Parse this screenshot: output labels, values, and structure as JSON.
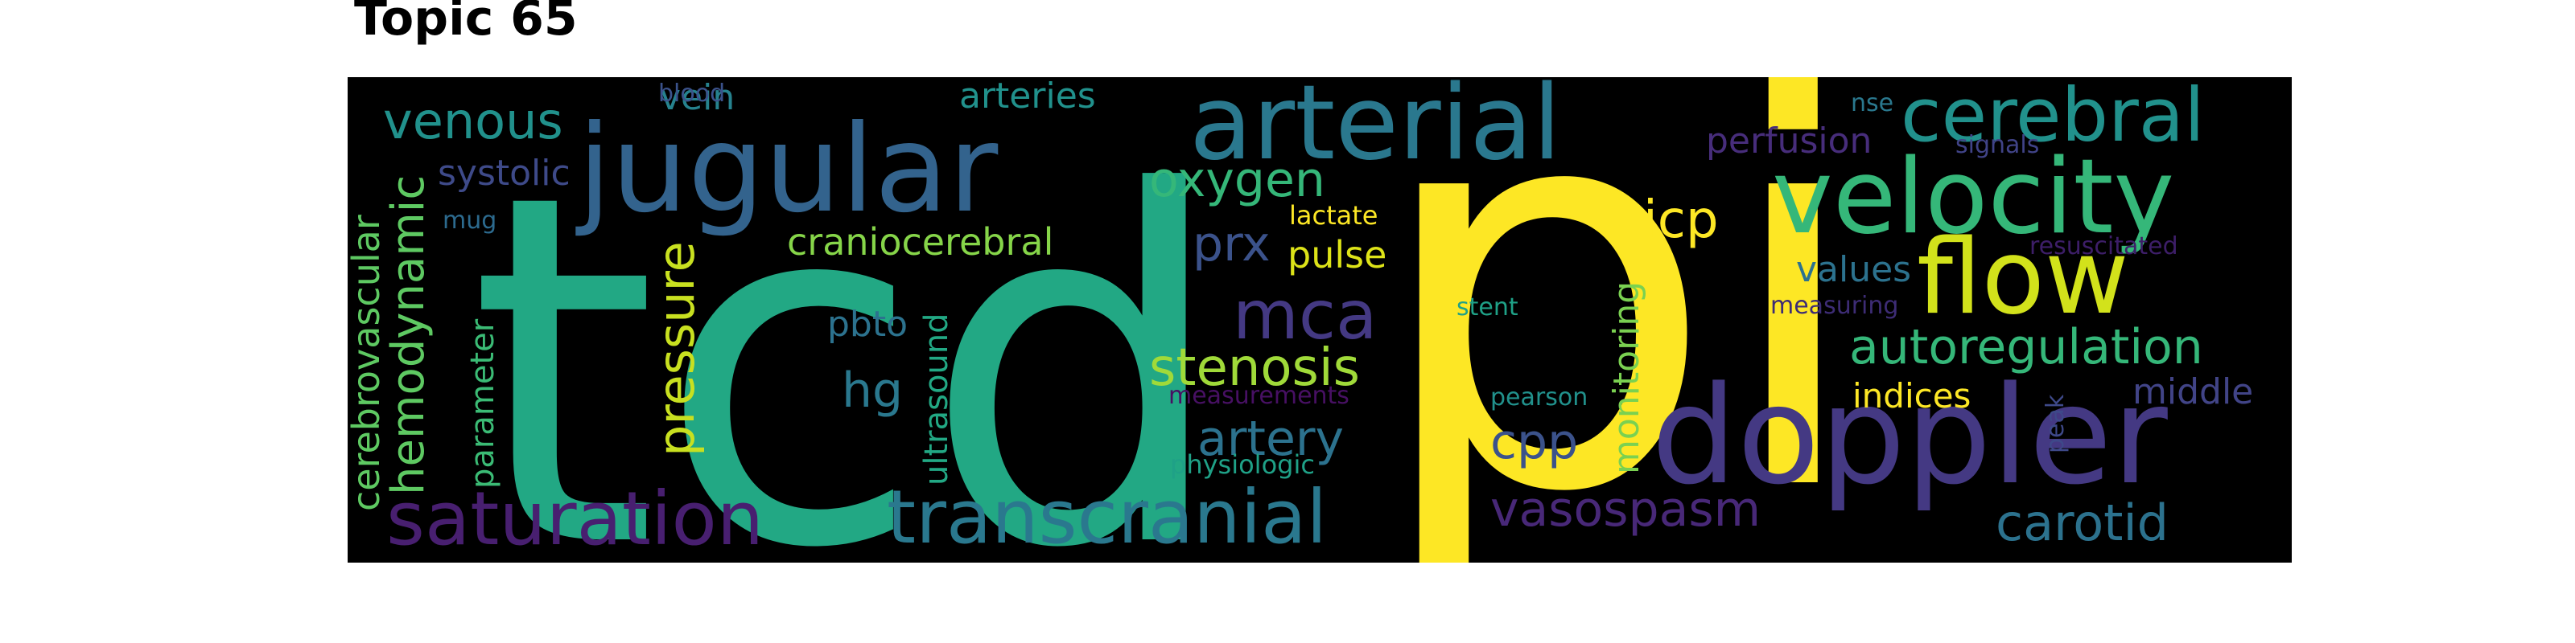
{
  "title": "Topic 65",
  "words": [
    {
      "key": "tcd",
      "text": "tcd",
      "color": "#22a884"
    },
    {
      "key": "pi",
      "text": "pi",
      "color": "#fde725"
    },
    {
      "key": "jugular",
      "text": "jugular",
      "color": "#33638d"
    },
    {
      "key": "doppler",
      "text": "doppler",
      "color": "#443983"
    },
    {
      "key": "arterial",
      "text": "arterial",
      "color": "#2a788e"
    },
    {
      "key": "velocity",
      "text": "velocity",
      "color": "#35b779"
    },
    {
      "key": "flow",
      "text": "flow",
      "color": "#d2e21b"
    },
    {
      "key": "saturation",
      "text": "saturation",
      "color": "#481f70"
    },
    {
      "key": "transcranial",
      "text": "transcranial",
      "color": "#2a788e"
    },
    {
      "key": "cerebral",
      "text": "cerebral",
      "color": "#21918c"
    },
    {
      "key": "mca",
      "text": "mca",
      "color": "#443983"
    },
    {
      "key": "stenosis",
      "text": "stenosis",
      "color": "#a0da39"
    },
    {
      "key": "autoregulation",
      "text": "autoregulation",
      "color": "#35b779"
    },
    {
      "key": "hemodynamic",
      "text": "hemodynamic",
      "color": "#5ec962"
    },
    {
      "key": "pressure",
      "text": "pressure",
      "color": "#c8e020"
    },
    {
      "key": "venous",
      "text": "venous",
      "color": "#21918c"
    },
    {
      "key": "oxygen",
      "text": "oxygen",
      "color": "#35b779"
    },
    {
      "key": "artery",
      "text": "artery",
      "color": "#2c728e"
    },
    {
      "key": "vasospasm",
      "text": "vasospasm",
      "color": "#482878"
    },
    {
      "key": "carotid",
      "text": "carotid",
      "color": "#2c728e"
    },
    {
      "key": "cpp",
      "text": "cpp",
      "color": "#3b528b"
    },
    {
      "key": "icp",
      "text": "icp",
      "color": "#fde725"
    },
    {
      "key": "prx",
      "text": "prx",
      "color": "#3b528b"
    },
    {
      "key": "craniocerebral",
      "text": "craniocerebral",
      "color": "#86d549"
    },
    {
      "key": "cerebrovascular",
      "text": "cerebrovascular",
      "color": "#5ec962"
    },
    {
      "key": "hg",
      "text": "hg",
      "color": "#2a788e"
    },
    {
      "key": "pulse",
      "text": "pulse",
      "color": "#dde318"
    },
    {
      "key": "monitoring",
      "text": "monitoring",
      "color": "#7ad151"
    },
    {
      "key": "values",
      "text": "values",
      "color": "#2c728e"
    },
    {
      "key": "indices",
      "text": "indices",
      "color": "#fde725"
    },
    {
      "key": "middle",
      "text": "middle",
      "color": "#414487"
    },
    {
      "key": "systolic",
      "text": "systolic",
      "color": "#3e4a89"
    },
    {
      "key": "pbto",
      "text": "pbto",
      "color": "#2c728e"
    },
    {
      "key": "ultrasound",
      "text": "ultrasound",
      "color": "#22a884"
    },
    {
      "key": "parameter",
      "text": "parameter",
      "color": "#3bbb75"
    },
    {
      "key": "perfusion",
      "text": "perfusion",
      "color": "#472d7b"
    },
    {
      "key": "arteries",
      "text": "arteries",
      "color": "#21918c"
    },
    {
      "key": "vein",
      "text": "vein",
      "color": "#26828e"
    },
    {
      "key": "lactate",
      "text": "lactate",
      "color": "#fde725"
    },
    {
      "key": "stent",
      "text": "stent",
      "color": "#1fa187"
    },
    {
      "key": "nse",
      "text": "nse",
      "color": "#2a788e"
    },
    {
      "key": "signals",
      "text": "signals",
      "color": "#404387"
    },
    {
      "key": "resuscitated",
      "text": "resuscitated",
      "color": "#3d1e68"
    },
    {
      "key": "measuring",
      "text": "measuring",
      "color": "#3d2c75"
    },
    {
      "key": "measurements",
      "text": "measurements",
      "color": "#471063"
    },
    {
      "key": "pearson",
      "text": "pearson",
      "color": "#21918c"
    },
    {
      "key": "peak",
      "text": "peak",
      "color": "#3e4989"
    },
    {
      "key": "physiologic",
      "text": "physiologic",
      "color": "#1fa187"
    },
    {
      "key": "blood",
      "text": "blood",
      "color": "#3b528b"
    },
    {
      "key": "mug",
      "text": "mug",
      "color": "#2c6a8e"
    }
  ]
}
